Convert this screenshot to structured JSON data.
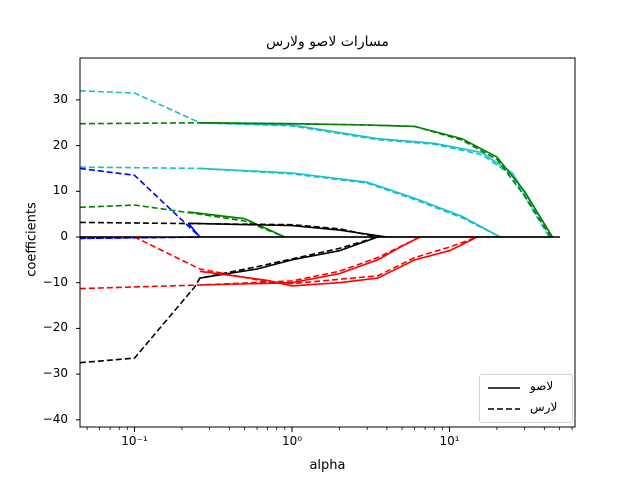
{
  "chart_data": {
    "type": "line",
    "title": "مسارات لاصو ولارس",
    "xlabel": "alpha",
    "ylabel": "coefficients",
    "xscale": "log",
    "xlim": [
      0.045,
      63
    ],
    "ylim": [
      -41,
      39
    ],
    "yticks": [
      30,
      20,
      10,
      0,
      -10,
      -20,
      -30,
      -40
    ],
    "ytick_labels": [
      "30",
      "20",
      "10",
      "0",
      "−10",
      "−20",
      "−30",
      "−40"
    ],
    "xtick_labels": [
      "10⁻¹",
      "10⁰",
      "10¹"
    ],
    "legend": {
      "position": "lower right",
      "entries": [
        {
          "label": "لاصو",
          "style": "solid"
        },
        {
          "label": "لارس",
          "style": "dashed"
        }
      ]
    },
    "series": [
      {
        "name": "lasso-cyan-1",
        "color": "#17becf",
        "style": "solid",
        "points": [
          [
            0.26,
            25
          ],
          [
            1,
            24.5
          ],
          [
            3.5,
            21.5
          ],
          [
            8,
            20.5
          ],
          [
            16,
            18.5
          ],
          [
            25,
            14
          ],
          [
            35,
            6
          ],
          [
            45,
            0
          ]
        ]
      },
      {
        "name": "lars-cyan-1",
        "color": "#17becf",
        "style": "dashed",
        "points": [
          [
            0.045,
            32
          ],
          [
            0.1,
            31.5
          ],
          [
            0.26,
            25
          ],
          [
            1,
            24.3
          ],
          [
            3.5,
            21.3
          ],
          [
            8,
            20.3
          ],
          [
            16,
            18
          ],
          [
            25,
            13.5
          ],
          [
            35,
            5
          ],
          [
            43,
            0
          ]
        ]
      },
      {
        "name": "lasso-green-1",
        "color": "#008000",
        "style": "solid",
        "points": [
          [
            0.26,
            25
          ],
          [
            1,
            24.8
          ],
          [
            3,
            24.5
          ],
          [
            6,
            24.2
          ],
          [
            12,
            21.5
          ],
          [
            20,
            17.5
          ],
          [
            30,
            10
          ],
          [
            45,
            0
          ]
        ]
      },
      {
        "name": "lars-green-1",
        "color": "#008000",
        "style": "dashed",
        "points": [
          [
            0.045,
            24.8
          ],
          [
            0.26,
            25
          ],
          [
            1,
            24.8
          ],
          [
            3,
            24.5
          ],
          [
            6,
            24.2
          ],
          [
            12,
            21.2
          ],
          [
            20,
            17
          ],
          [
            30,
            9
          ],
          [
            44,
            0
          ]
        ]
      },
      {
        "name": "lasso-cyan-2",
        "color": "#17becf",
        "style": "solid",
        "points": [
          [
            0.26,
            15
          ],
          [
            1,
            14
          ],
          [
            3,
            12
          ],
          [
            6,
            8.5
          ],
          [
            12,
            4.5
          ],
          [
            21,
            0
          ]
        ]
      },
      {
        "name": "lars-cyan-2",
        "color": "#17becf",
        "style": "dashed",
        "points": [
          [
            0.045,
            15.3
          ],
          [
            0.26,
            15
          ],
          [
            1,
            13.8
          ],
          [
            3,
            11.8
          ],
          [
            6,
            8.2
          ],
          [
            12,
            4.2
          ],
          [
            21,
            0
          ]
        ]
      },
      {
        "name": "lars-blue",
        "color": "#0000ff",
        "style": "dashed",
        "points": [
          [
            0.045,
            15
          ],
          [
            0.1,
            13.5
          ],
          [
            0.26,
            0
          ],
          [
            0.045,
            -0.3
          ]
        ]
      },
      {
        "name": "lasso-blue",
        "color": "#0000ff",
        "style": "solid",
        "points": [
          [
            0.22,
            3
          ],
          [
            0.26,
            0
          ],
          [
            0.9,
            0
          ]
        ]
      },
      {
        "name": "lars-blue-tail",
        "color": "#0000ff",
        "style": "dashed",
        "points": [
          [
            0.045,
            -0.3
          ],
          [
            0.26,
            0
          ]
        ]
      },
      {
        "name": "lasso-green-2",
        "color": "#008000",
        "style": "solid",
        "points": [
          [
            0.22,
            5.5
          ],
          [
            0.5,
            4
          ],
          [
            0.9,
            0
          ],
          [
            4,
            0
          ]
        ]
      },
      {
        "name": "lars-green-2",
        "color": "#008000",
        "style": "dashed",
        "points": [
          [
            0.045,
            6.5
          ],
          [
            0.1,
            7
          ],
          [
            0.26,
            5
          ],
          [
            0.5,
            3.5
          ],
          [
            0.9,
            0
          ]
        ]
      },
      {
        "name": "lasso-black",
        "color": "#000000",
        "style": "solid",
        "points": [
          [
            0.22,
            3
          ],
          [
            1,
            2.5
          ],
          [
            2,
            1.5
          ],
          [
            4,
            0
          ],
          [
            45,
            0
          ]
        ]
      },
      {
        "name": "lars-black-1",
        "color": "#000000",
        "style": "dashed",
        "points": [
          [
            0.045,
            3.2
          ],
          [
            1,
            2.7
          ],
          [
            2,
            1.8
          ],
          [
            3.5,
            0
          ]
        ]
      },
      {
        "name": "lasso-black-2",
        "color": "#000000",
        "style": "solid",
        "points": [
          [
            0.25,
            -10
          ],
          [
            0.26,
            -9
          ],
          [
            0.6,
            -7
          ],
          [
            1,
            -5
          ],
          [
            2,
            -3
          ],
          [
            3.5,
            0
          ]
        ]
      },
      {
        "name": "lars-black-2",
        "color": "#000000",
        "style": "dashed",
        "points": [
          [
            0.045,
            -27.5
          ],
          [
            0.1,
            -26.5
          ],
          [
            0.24,
            -11
          ],
          [
            0.26,
            -9
          ],
          [
            0.6,
            -6.5
          ],
          [
            1,
            -4.8
          ],
          [
            2,
            -2.5
          ],
          [
            3.5,
            0
          ]
        ]
      },
      {
        "name": "lasso-red-1",
        "color": "#ff0000",
        "style": "solid",
        "points": [
          [
            0.26,
            -10.5
          ],
          [
            1,
            -10
          ],
          [
            2,
            -8
          ],
          [
            3.5,
            -5
          ],
          [
            5,
            -2
          ],
          [
            6.5,
            0
          ]
        ]
      },
      {
        "name": "lars-red-1",
        "color": "#ff0000",
        "style": "dashed",
        "points": [
          [
            0.045,
            -11.3
          ],
          [
            0.26,
            -10.5
          ],
          [
            1,
            -9.6
          ],
          [
            2,
            -7.5
          ],
          [
            3.5,
            -4.5
          ],
          [
            6.5,
            0
          ]
        ]
      },
      {
        "name": "lasso-red-2",
        "color": "#ff0000",
        "style": "solid",
        "points": [
          [
            0.26,
            -7.5
          ],
          [
            0.7,
            -9.5
          ],
          [
            1,
            -10.7
          ],
          [
            2,
            -10
          ],
          [
            3.5,
            -9
          ],
          [
            6,
            -5
          ],
          [
            10,
            -3
          ],
          [
            15,
            0
          ]
        ]
      },
      {
        "name": "lars-red-2",
        "color": "#ff0000",
        "style": "dashed",
        "points": [
          [
            0.045,
            0
          ],
          [
            0.1,
            0
          ],
          [
            0.26,
            -7
          ],
          [
            0.7,
            -9.8
          ],
          [
            1,
            -10.2
          ],
          [
            3.5,
            -8.5
          ],
          [
            6,
            -4.5
          ],
          [
            10,
            -2.2
          ],
          [
            15,
            0
          ]
        ]
      }
    ]
  }
}
